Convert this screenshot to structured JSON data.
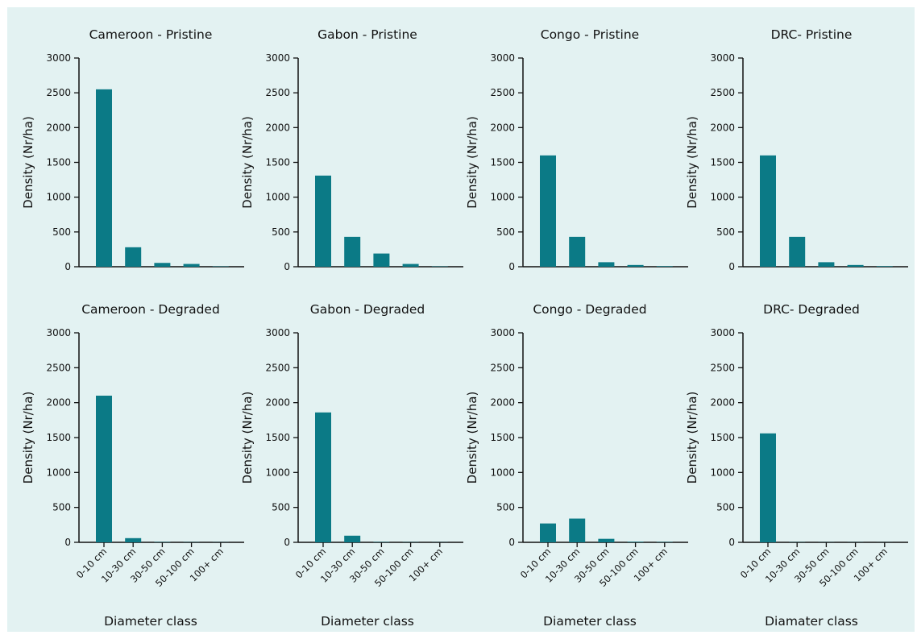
{
  "colors": {
    "bar": "#0b7a86",
    "background": "#e3f2f2",
    "axis": "#111111"
  },
  "chart_data": [
    {
      "type": "bar",
      "title": "Cameroon - Pristine",
      "xlabel": "",
      "ylabel": "Density (Nr/ha)",
      "ylim": [
        0,
        3000
      ],
      "yticks": [
        "0",
        "500",
        "1000",
        "1500",
        "2000",
        "2500",
        "3000"
      ],
      "categories": [
        "0-10 cm",
        "10-30 cm",
        "30-50 cm",
        "50-100 cm",
        "100+ cm"
      ],
      "values": [
        2550,
        280,
        55,
        40,
        5
      ],
      "show_category_labels": false
    },
    {
      "type": "bar",
      "title": "Gabon - Pristine",
      "xlabel": "",
      "ylabel": "Density (Nr/ha)",
      "ylim": [
        0,
        3000
      ],
      "yticks": [
        "0",
        "500",
        "1000",
        "1500",
        "2000",
        "2500",
        "3000"
      ],
      "categories": [
        "0-10 cm",
        "10-30 cm",
        "30-50 cm",
        "50-100 cm",
        "100+ cm"
      ],
      "values": [
        1310,
        430,
        190,
        40,
        5
      ],
      "show_category_labels": false
    },
    {
      "type": "bar",
      "title": "Congo - Pristine",
      "xlabel": "",
      "ylabel": "Density (Nr/ha)",
      "ylim": [
        0,
        3000
      ],
      "yticks": [
        "0",
        "500",
        "1000",
        "1500",
        "2000",
        "2500",
        "3000"
      ],
      "categories": [
        "0-10 cm",
        "10-30 cm",
        "30-50 cm",
        "50-100 cm",
        "100+ cm"
      ],
      "values": [
        1600,
        430,
        65,
        25,
        8
      ],
      "show_category_labels": false
    },
    {
      "type": "bar",
      "title": "DRC- Pristine",
      "xlabel": "",
      "ylabel": "Density (Nr/ha)",
      "ylim": [
        0,
        3000
      ],
      "yticks": [
        "0",
        "500",
        "1000",
        "1500",
        "2000",
        "2500",
        "3000"
      ],
      "categories": [
        "0-10 cm",
        "10-30 cm",
        "30-50 cm",
        "50-100 cm",
        "100+ cm"
      ],
      "values": [
        1600,
        430,
        65,
        25,
        8
      ],
      "show_category_labels": false
    },
    {
      "type": "bar",
      "title": "Cameroon - Degraded",
      "xlabel": "Diameter class",
      "ylabel": "Density (Nr/ha)",
      "ylim": [
        0,
        3000
      ],
      "yticks": [
        "0",
        "500",
        "1000",
        "1500",
        "2000",
        "2500",
        "3000"
      ],
      "categories": [
        "0-10 cm",
        "10-30 cm",
        "30-50 cm",
        "50-100 cm",
        "100+ cm"
      ],
      "values": [
        2100,
        60,
        5,
        3,
        2
      ],
      "show_category_labels": true
    },
    {
      "type": "bar",
      "title": "Gabon - Degraded",
      "xlabel": "Diameter class",
      "ylabel": "Density (Nr/ha)",
      "ylim": [
        0,
        3000
      ],
      "yticks": [
        "0",
        "500",
        "1000",
        "1500",
        "2000",
        "2500",
        "3000"
      ],
      "categories": [
        "0-10 cm",
        "10-30 cm",
        "30-50 cm",
        "50-100 cm",
        "100+ cm"
      ],
      "values": [
        1860,
        95,
        5,
        3,
        2
      ],
      "show_category_labels": true
    },
    {
      "type": "bar",
      "title": "Congo - Degraded",
      "xlabel": "Diameter class",
      "ylabel": "Density (Nr/ha)",
      "ylim": [
        0,
        3000
      ],
      "yticks": [
        "0",
        "500",
        "1000",
        "1500",
        "2000",
        "2500",
        "3000"
      ],
      "categories": [
        "0-10 cm",
        "10-30 cm",
        "30-50 cm",
        "50-100 cm",
        "100+ cm"
      ],
      "values": [
        270,
        340,
        50,
        8,
        5
      ],
      "show_category_labels": true
    },
    {
      "type": "bar",
      "title": "DRC- Degraded",
      "xlabel": "Diamater class",
      "ylabel": "Density (Nr/ha)",
      "ylim": [
        0,
        3000
      ],
      "yticks": [
        "0",
        "500",
        "1000",
        "1500",
        "2000",
        "2500",
        "3000"
      ],
      "categories": [
        "0-10 cm",
        "10-30 cm",
        "30-50 cm",
        "50-100 cm",
        "100+ cm"
      ],
      "values": [
        1560,
        3,
        2,
        2,
        1
      ],
      "show_category_labels": true
    }
  ]
}
